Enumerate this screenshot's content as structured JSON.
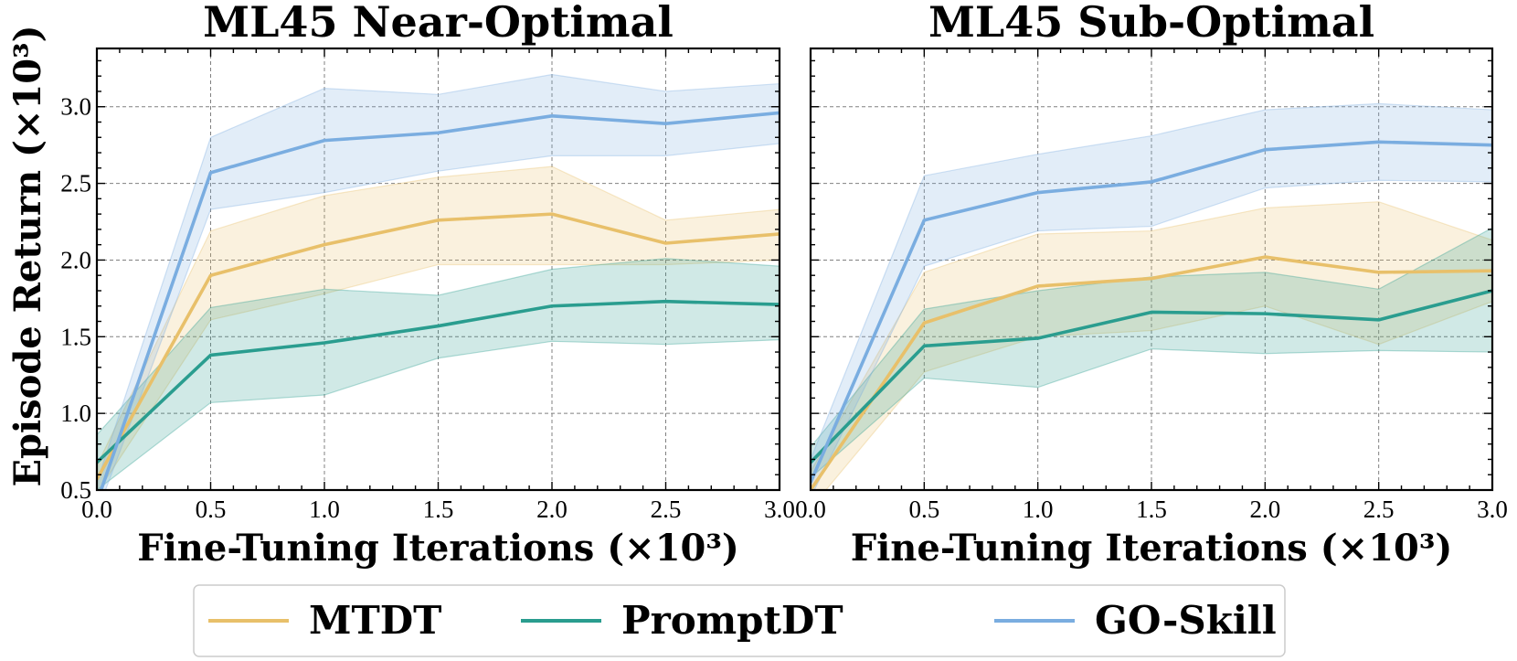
{
  "chart_data": [
    {
      "type": "line",
      "title": "ML45 Near-Optimal",
      "xlabel": "Fine-Tuning Iterations (×10³)",
      "ylabel": "Episode Return (×10³)",
      "xlim": [
        0.0,
        3.0
      ],
      "ylim": [
        0.5,
        3.38
      ],
      "xticks": [
        0.0,
        0.5,
        1.0,
        1.5,
        2.0,
        2.5,
        3.0
      ],
      "xtick_labels": [
        "0.0",
        "0.5",
        "1.0",
        "1.5",
        "2.0",
        "2.5",
        "3.0"
      ],
      "yticks": [
        0.5,
        1.0,
        1.5,
        2.0,
        2.5,
        3.0
      ],
      "ytick_labels": [
        "0.5",
        "1.0",
        "1.5",
        "2.0",
        "2.5",
        "3.0"
      ],
      "grid": true,
      "x": [
        0.0,
        0.5,
        1.0,
        1.5,
        2.0,
        2.5,
        3.0
      ],
      "series": [
        {
          "name": "MTDT",
          "color": "#E8C06A",
          "values": [
            0.57,
            1.9,
            2.1,
            2.26,
            2.3,
            2.11,
            2.17
          ],
          "upper": [
            0.66,
            2.19,
            2.42,
            2.54,
            2.61,
            2.26,
            2.33
          ],
          "lower": [
            0.48,
            1.61,
            1.78,
            1.97,
            1.97,
            1.97,
            2.0
          ]
        },
        {
          "name": "PromptDT",
          "color": "#2A9D8F",
          "values": [
            0.68,
            1.38,
            1.46,
            1.57,
            1.7,
            1.73,
            1.71
          ],
          "upper": [
            0.86,
            1.69,
            1.81,
            1.77,
            1.94,
            2.01,
            1.96
          ],
          "lower": [
            0.5,
            1.07,
            1.12,
            1.36,
            1.47,
            1.45,
            1.48
          ]
        },
        {
          "name": "GO-Skill",
          "color": "#7AADE0",
          "values": [
            0.42,
            2.57,
            2.78,
            2.83,
            2.94,
            2.89,
            2.96
          ],
          "upper": [
            0.55,
            2.8,
            3.12,
            3.08,
            3.21,
            3.1,
            3.15
          ],
          "lower": [
            0.35,
            2.33,
            2.44,
            2.58,
            2.68,
            2.68,
            2.76
          ]
        }
      ]
    },
    {
      "type": "line",
      "title": "ML45 Sub-Optimal",
      "xlabel": "Fine-Tuning Iterations (×10³)",
      "ylabel": "",
      "xlim": [
        0.0,
        3.0
      ],
      "ylim": [
        0.5,
        3.38
      ],
      "xticks": [
        0.0,
        0.5,
        1.0,
        1.5,
        2.0,
        2.5,
        3.0
      ],
      "xtick_labels": [
        "0.0",
        "0.5",
        "1.0",
        "1.5",
        "2.0",
        "2.5",
        "3.0"
      ],
      "yticks": [
        0.5,
        1.0,
        1.5,
        2.0,
        2.5,
        3.0
      ],
      "ytick_labels": [],
      "grid": true,
      "x": [
        0.0,
        0.5,
        1.0,
        1.5,
        2.0,
        2.5,
        3.0
      ],
      "series": [
        {
          "name": "MTDT",
          "color": "#E8C06A",
          "values": [
            0.5,
            1.59,
            1.83,
            1.88,
            2.02,
            1.92,
            1.93
          ],
          "upper": [
            0.62,
            1.92,
            2.17,
            2.19,
            2.34,
            2.38,
            2.13
          ],
          "lower": [
            0.38,
            1.27,
            1.5,
            1.54,
            1.7,
            1.45,
            1.73
          ]
        },
        {
          "name": "PromptDT",
          "color": "#2A9D8F",
          "values": [
            0.68,
            1.44,
            1.49,
            1.66,
            1.65,
            1.61,
            1.8
          ],
          "upper": [
            0.78,
            1.68,
            1.8,
            1.89,
            1.92,
            1.81,
            2.21
          ],
          "lower": [
            0.58,
            1.23,
            1.17,
            1.42,
            1.39,
            1.41,
            1.4
          ]
        },
        {
          "name": "GO-Skill",
          "color": "#7AADE0",
          "values": [
            0.55,
            2.26,
            2.44,
            2.51,
            2.72,
            2.77,
            2.75
          ],
          "upper": [
            0.7,
            2.55,
            2.69,
            2.81,
            2.98,
            3.02,
            2.98
          ],
          "lower": [
            0.45,
            1.96,
            2.19,
            2.22,
            2.47,
            2.52,
            2.51
          ]
        }
      ]
    }
  ],
  "legend": {
    "placement": "bottom-center",
    "entries": [
      {
        "label": "MTDT",
        "color": "#E8C06A"
      },
      {
        "label": "PromptDT",
        "color": "#2A9D8F"
      },
      {
        "label": "GO-Skill",
        "color": "#7AADE0"
      }
    ]
  }
}
